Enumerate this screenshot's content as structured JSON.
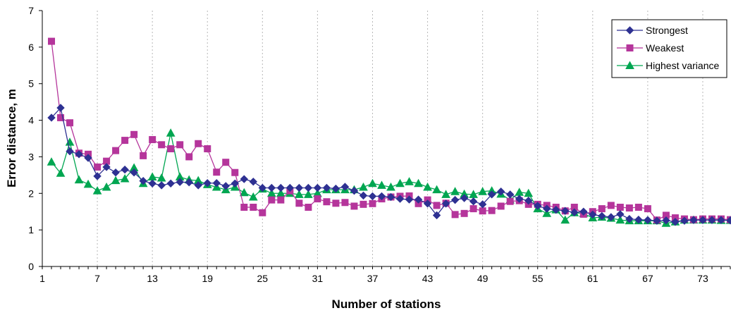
{
  "chart_data": {
    "type": "line",
    "title": "",
    "xlabel": "Number of stations",
    "ylabel": "Error distance, m",
    "xlim": [
      1,
      76
    ],
    "ylim": [
      0,
      7
    ],
    "x_ticks": [
      1,
      7,
      13,
      19,
      25,
      31,
      37,
      43,
      49,
      55,
      61,
      67,
      73
    ],
    "y_ticks": [
      0,
      1,
      2,
      3,
      4,
      5,
      6,
      7
    ],
    "grid": "vertical dashed",
    "legend_position": "top-right",
    "x": [
      2,
      3,
      4,
      5,
      6,
      7,
      8,
      9,
      10,
      11,
      12,
      13,
      14,
      15,
      16,
      17,
      18,
      19,
      20,
      21,
      22,
      23,
      24,
      25,
      26,
      27,
      28,
      29,
      30,
      31,
      32,
      33,
      34,
      35,
      36,
      37,
      38,
      39,
      40,
      41,
      42,
      43,
      44,
      45,
      46,
      47,
      48,
      49,
      50,
      51,
      52,
      53,
      54,
      55,
      56,
      57,
      58,
      59,
      60,
      61,
      62,
      63,
      64,
      65,
      66,
      67,
      68,
      69,
      70,
      71,
      72,
      73,
      74,
      75,
      76
    ],
    "series": [
      {
        "name": "Strongest",
        "color": "#2e3192",
        "marker": "diamond",
        "values": [
          4.07,
          4.34,
          3.15,
          3.07,
          2.97,
          2.47,
          2.72,
          2.57,
          2.65,
          2.57,
          2.34,
          2.27,
          2.22,
          2.27,
          2.31,
          2.3,
          2.22,
          2.28,
          2.28,
          2.2,
          2.27,
          2.39,
          2.32,
          2.15,
          2.15,
          2.15,
          2.15,
          2.15,
          2.15,
          2.15,
          2.15,
          2.13,
          2.18,
          2.07,
          1.94,
          1.92,
          1.92,
          1.9,
          1.85,
          1.83,
          1.83,
          1.72,
          1.4,
          1.72,
          1.82,
          1.87,
          1.78,
          1.7,
          1.97,
          2.05,
          1.97,
          1.85,
          1.8,
          1.66,
          1.58,
          1.55,
          1.52,
          1.48,
          1.5,
          1.42,
          1.38,
          1.35,
          1.43,
          1.3,
          1.28,
          1.27,
          1.25,
          1.26,
          1.22,
          1.25,
          1.27,
          1.27,
          1.27,
          1.27,
          1.26
        ]
      },
      {
        "name": "Weakest",
        "color": "#b5359b",
        "marker": "square",
        "values": [
          6.16,
          4.07,
          3.93,
          3.1,
          3.07,
          2.72,
          2.88,
          3.17,
          3.45,
          3.61,
          3.03,
          3.47,
          3.33,
          3.22,
          3.33,
          3.0,
          3.36,
          3.22,
          2.58,
          2.85,
          2.57,
          1.62,
          1.62,
          1.47,
          1.82,
          1.82,
          2.07,
          1.73,
          1.62,
          1.85,
          1.77,
          1.73,
          1.75,
          1.65,
          1.7,
          1.72,
          1.85,
          1.9,
          1.92,
          1.93,
          1.72,
          1.82,
          1.67,
          1.73,
          1.42,
          1.45,
          1.58,
          1.52,
          1.53,
          1.65,
          1.78,
          1.8,
          1.7,
          1.7,
          1.67,
          1.62,
          1.52,
          1.62,
          1.43,
          1.5,
          1.58,
          1.67,
          1.62,
          1.6,
          1.62,
          1.58,
          1.27,
          1.4,
          1.33,
          1.3,
          1.28,
          1.3,
          1.3,
          1.3,
          1.28
        ]
      },
      {
        "name": "Highest variance",
        "color": "#00a651",
        "marker": "triangle",
        "values": [
          2.86,
          2.55,
          3.4,
          2.37,
          2.25,
          2.07,
          2.17,
          2.35,
          2.4,
          2.7,
          2.27,
          2.45,
          2.42,
          3.65,
          2.45,
          2.37,
          2.35,
          2.24,
          2.17,
          2.1,
          2.17,
          2.02,
          1.9,
          2.12,
          2.0,
          2.0,
          2.0,
          1.97,
          1.97,
          2.0,
          2.1,
          2.1,
          2.1,
          2.1,
          2.17,
          2.27,
          2.22,
          2.17,
          2.27,
          2.32,
          2.27,
          2.17,
          2.1,
          1.97,
          2.05,
          1.98,
          1.97,
          2.05,
          2.07,
          1.98,
          1.82,
          2.03,
          2.0,
          1.58,
          1.45,
          1.55,
          1.27,
          1.47,
          1.45,
          1.33,
          1.35,
          1.32,
          1.27,
          1.25,
          1.25,
          1.25,
          1.25,
          1.18,
          1.22,
          1.27,
          1.27,
          1.27,
          1.27,
          1.26,
          1.26
        ]
      }
    ]
  }
}
